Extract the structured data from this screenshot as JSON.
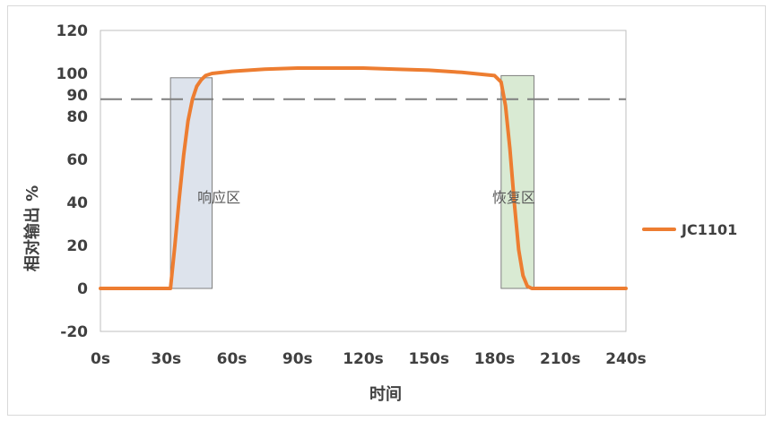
{
  "chart_data": {
    "type": "line",
    "xlabel": "时间",
    "ylabel": "相对输出 %",
    "xlim": [
      0,
      240
    ],
    "ylim": [
      -20,
      120
    ],
    "x_ticks": [
      0,
      30,
      60,
      90,
      120,
      150,
      180,
      210,
      240
    ],
    "x_tick_labels": [
      "0s",
      "30s",
      "60s",
      "90s",
      "120s",
      "150s",
      "180s",
      "210s",
      "240s"
    ],
    "y_ticks": [
      -20,
      0,
      20,
      40,
      60,
      80,
      100,
      120
    ],
    "y_tick_labels": [
      "-20",
      "0",
      "20",
      "40",
      "60",
      "80",
      "100",
      "120"
    ],
    "extra_y_label": {
      "text": "90",
      "value": 90
    },
    "threshold_line": {
      "y": 88,
      "style": "dashed",
      "color": "#7f7f7f"
    },
    "zones": [
      {
        "label": "响应区",
        "x_start": 32,
        "x_end": 51,
        "top": 98,
        "fill": "#dde3ec"
      },
      {
        "label": "恢复区",
        "x_start": 183,
        "x_end": 198,
        "top": 99,
        "fill": "#d9ead3"
      }
    ],
    "series": [
      {
        "name": "JC1101",
        "color": "#ed7d31",
        "x": [
          0,
          32,
          34,
          36,
          38,
          40,
          42,
          44,
          46,
          48,
          51,
          60,
          75,
          90,
          105,
          120,
          135,
          150,
          165,
          180,
          183,
          185,
          187,
          189,
          191,
          193,
          195,
          197,
          200,
          210,
          240
        ],
        "y": [
          0,
          0,
          20,
          42,
          62,
          78,
          88,
          94,
          97,
          99,
          100,
          101,
          102,
          102.5,
          102.5,
          102.5,
          102,
          101.5,
          100.5,
          99,
          96,
          85,
          65,
          40,
          18,
          6,
          1,
          0,
          0,
          0,
          0
        ]
      }
    ],
    "legend": {
      "position": "right"
    },
    "grid": false
  }
}
